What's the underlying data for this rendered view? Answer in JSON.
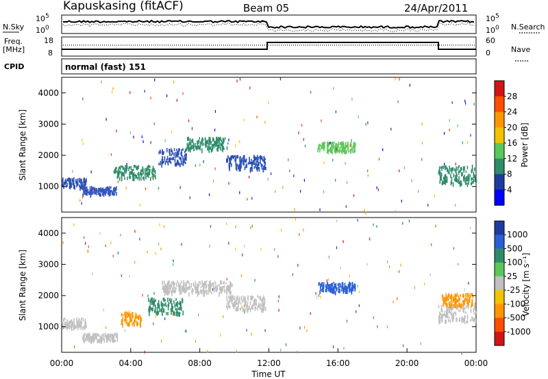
{
  "header": {
    "station": "Kapuskasing (fitACF)",
    "beam": "Beam 05",
    "date": "24/Apr/2011"
  },
  "sky_panel": {
    "left_label": "N.Sky",
    "right_label": "N.Search",
    "tick_top": "10^5",
    "tick_bottom": "10^0"
  },
  "freq_panel": {
    "left_label_1": "Freq.",
    "left_label_2": "[MHz]",
    "left_ticks": [
      "18",
      "8"
    ],
    "right_label": "Nave",
    "right_ticks": [
      "60",
      "0"
    ],
    "cpid_label": "CPID",
    "cpid_text": "normal (fast) 151"
  },
  "chart_data": [
    {
      "type": "heatmap",
      "title": "",
      "quantity": "Power",
      "ylabel": "Slant Range [km]",
      "xlabel": "",
      "ylim": [
        180,
        4500
      ],
      "yticks": [
        "4000",
        "3000",
        "2000",
        "1000"
      ],
      "ytick_values": [
        4000,
        3000,
        2000,
        1000
      ],
      "colorbar_label": "Power [dB]",
      "colorbar_ticks": [
        "28",
        "24",
        "20",
        "16",
        "12",
        "8",
        "4"
      ],
      "colorbar_colors": [
        "#d21414",
        "#ff4e00",
        "#ff9600",
        "#f2c400",
        "#5ac85a",
        "#2f8c6a",
        "#1e3ca0",
        "#0000ff"
      ],
      "echo_bands": [
        {
          "start": 0.0,
          "end": 1.4,
          "center": 1150,
          "width": 150,
          "color": "#2a4fb4"
        },
        {
          "start": 1.2,
          "end": 3.2,
          "center": 900,
          "width": 120,
          "color": "#3456c0"
        },
        {
          "start": 3.0,
          "end": 5.4,
          "center": 1500,
          "width": 200,
          "color": "#2f8c6a"
        },
        {
          "start": 5.6,
          "end": 7.2,
          "center": 2000,
          "width": 250,
          "color": "#2a4fb4"
        },
        {
          "start": 7.2,
          "end": 9.6,
          "center": 2400,
          "width": 200,
          "color": "#2f8c6a"
        },
        {
          "start": 9.5,
          "end": 11.8,
          "center": 1800,
          "width": 220,
          "color": "#2a4fb4"
        },
        {
          "start": 14.8,
          "end": 17.0,
          "center": 2300,
          "width": 150,
          "color": "#5ac85a"
        },
        {
          "start": 21.8,
          "end": 24.0,
          "center": 1400,
          "width": 300,
          "color": "#2f8c6a"
        }
      ]
    },
    {
      "type": "heatmap",
      "title": "",
      "quantity": "Velocity",
      "ylabel": "Slant Range [km]",
      "xlabel": "Time UT",
      "ylim": [
        180,
        4500
      ],
      "yticks": [
        "4000",
        "3000",
        "2000",
        "1000"
      ],
      "ytick_values": [
        4000,
        3000,
        2000,
        1000
      ],
      "colorbar_label": "Velocity [m s⁻¹]",
      "colorbar_ticks": [
        "1000",
        "500",
        "100",
        "25",
        "-25",
        "-100",
        "-500",
        "-1000"
      ],
      "colorbar_colors": [
        "#1e3ca0",
        "#2a5fd6",
        "#2f8c6a",
        "#5ac85a",
        "#c0c0c0",
        "#f2c400",
        "#ff9600",
        "#ff4e00",
        "#d21414"
      ],
      "echo_bands": [
        {
          "start": 0.0,
          "end": 1.4,
          "center": 1150,
          "width": 150,
          "color": "#c0c0c0"
        },
        {
          "start": 1.2,
          "end": 3.2,
          "center": 700,
          "width": 120,
          "color": "#c0c0c0"
        },
        {
          "start": 3.4,
          "end": 4.6,
          "center": 1300,
          "width": 200,
          "color": "#ff9600"
        },
        {
          "start": 5.0,
          "end": 7.0,
          "center": 1700,
          "width": 250,
          "color": "#2f8c6a"
        },
        {
          "start": 5.8,
          "end": 9.8,
          "center": 2300,
          "width": 200,
          "color": "#c0c0c0"
        },
        {
          "start": 9.5,
          "end": 11.8,
          "center": 1800,
          "width": 220,
          "color": "#c0c0c0"
        },
        {
          "start": 14.8,
          "end": 17.0,
          "center": 2300,
          "width": 150,
          "color": "#2a5fd6"
        },
        {
          "start": 21.8,
          "end": 24.0,
          "center": 1500,
          "width": 300,
          "color": "#c0c0c0"
        },
        {
          "start": 22.0,
          "end": 23.8,
          "center": 1900,
          "width": 200,
          "color": "#ff9600"
        }
      ],
      "xticks": [
        "00:00",
        "04:00",
        "08:00",
        "12:00",
        "16:00",
        "20:00",
        "00:00"
      ],
      "xtick_hours": [
        0,
        4,
        8,
        12,
        16,
        20,
        24
      ]
    }
  ]
}
